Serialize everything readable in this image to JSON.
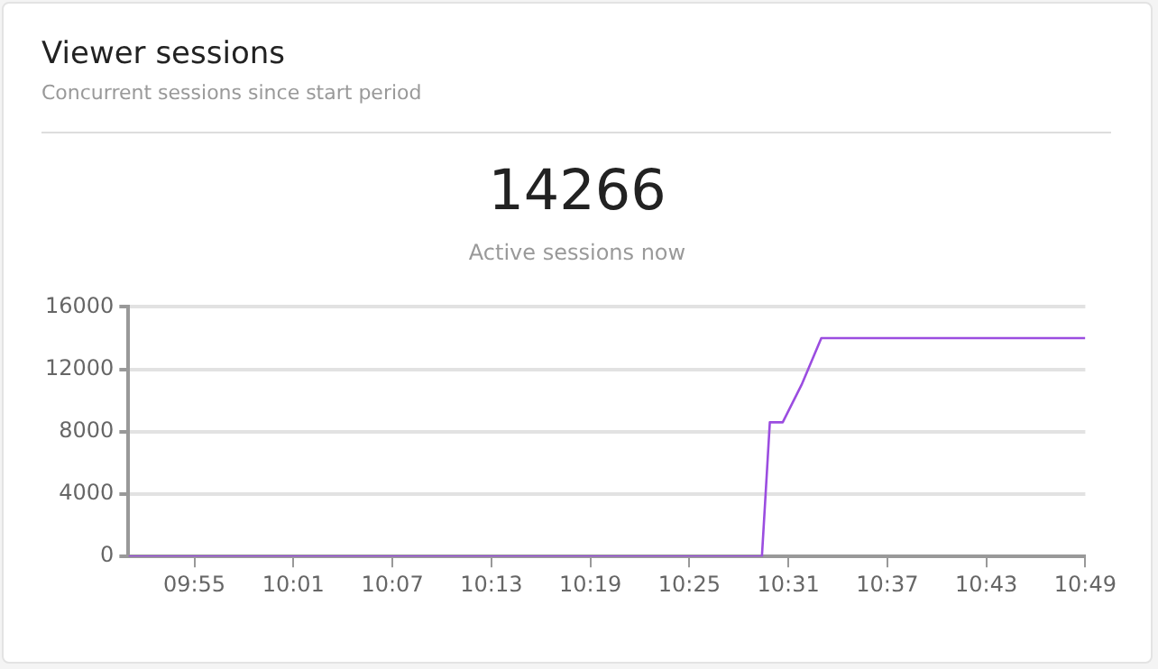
{
  "chart_data": {
    "type": "line",
    "title": "Viewer sessions",
    "subtitle": "Concurrent sessions since start period",
    "annotations": [
      "14266",
      "Active sessions now"
    ],
    "x": [
      9.85,
      10.49,
      10.498,
      10.511,
      10.53,
      10.55,
      10.8167
    ],
    "series": [
      {
        "color": "#9b4de0",
        "values": [
          0,
          0,
          8600,
          8600,
          11000,
          14000,
          14000
        ]
      }
    ],
    "xlim": [
      9.85,
      10.8167
    ],
    "xticks": [
      {
        "value": 9.9167,
        "label": "09:55"
      },
      {
        "value": 10.0167,
        "label": "10:01"
      },
      {
        "value": 10.1167,
        "label": "10:07"
      },
      {
        "value": 10.2167,
        "label": "10:13"
      },
      {
        "value": 10.3167,
        "label": "10:19"
      },
      {
        "value": 10.4167,
        "label": "10:25"
      },
      {
        "value": 10.5167,
        "label": "10:31"
      },
      {
        "value": 10.6167,
        "label": "10:37"
      },
      {
        "value": 10.7167,
        "label": "10:43"
      },
      {
        "value": 10.8167,
        "label": "10:49"
      }
    ],
    "ylim": [
      0,
      16000
    ],
    "yticks": [
      0,
      4000,
      8000,
      12000,
      16000
    ],
    "grid": "y",
    "legend": false,
    "marker": "none",
    "line_style": "solid"
  }
}
